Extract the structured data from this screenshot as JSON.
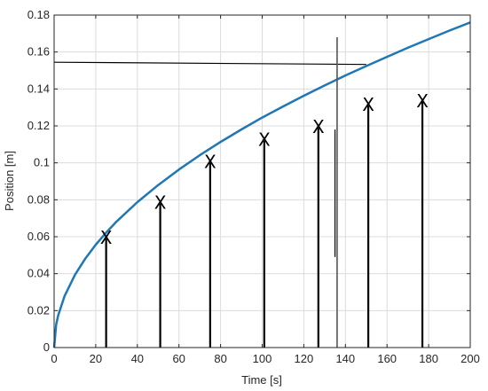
{
  "chart_data": {
    "type": "line",
    "title": "",
    "xlabel": "Time [s]",
    "ylabel": "Position [m]",
    "xlim": [
      0,
      200
    ],
    "ylim": [
      0,
      0.18
    ],
    "grid": true,
    "x_ticks": [
      0,
      20,
      40,
      60,
      80,
      100,
      120,
      140,
      160,
      180,
      200
    ],
    "x_tick_labels": [
      "0",
      "20",
      "40",
      "60",
      "80",
      "100",
      "120",
      "140",
      "160",
      "180",
      "200"
    ],
    "y_ticks": [
      0,
      0.02,
      0.04,
      0.06,
      0.08,
      0.1,
      0.12,
      0.14,
      0.16,
      0.18
    ],
    "y_tick_labels": [
      "0",
      "0.02",
      "0.04",
      "0.06",
      "0.08",
      "0.1",
      "0.12",
      "0.14",
      "0.16",
      "0.18"
    ],
    "series": [
      {
        "color": "#1f77b4",
        "x": [
          0,
          1,
          2,
          5,
          10,
          15,
          20,
          25,
          30,
          40,
          50,
          60,
          70,
          80,
          90,
          100,
          110,
          120,
          130,
          137,
          140,
          150,
          160,
          170,
          180,
          190,
          200
        ],
        "y": [
          0,
          0.0124,
          0.0176,
          0.0278,
          0.0394,
          0.0482,
          0.0557,
          0.0622,
          0.0682,
          0.0787,
          0.088,
          0.0964,
          0.1041,
          0.1113,
          0.1181,
          0.1245,
          0.1305,
          0.1363,
          0.1419,
          0.1457,
          0.1473,
          0.1524,
          0.1574,
          0.1623,
          0.167,
          0.1716,
          0.176
        ]
      }
    ],
    "stems": [
      {
        "x": 25,
        "y": 0.059,
        "marker": "X"
      },
      {
        "x": 51,
        "y": 0.078,
        "marker": "X"
      },
      {
        "x": 75,
        "y": 0.1,
        "marker": "X"
      },
      {
        "x": 101,
        "y": 0.112,
        "marker": "X"
      },
      {
        "x": 127,
        "y": 0.119,
        "marker": "X"
      },
      {
        "x": 151,
        "y": 0.131,
        "marker": "X"
      },
      {
        "x": 177,
        "y": 0.133,
        "marker": "X"
      }
    ],
    "reference_lines": {
      "horizontal": {
        "y": 0.154,
        "x_from": 0,
        "x_to": 150
      },
      "vertical": {
        "x": 136,
        "y_from": 0,
        "y_to": 0.168
      },
      "vertical_inner": {
        "x": 135,
        "y_from": 0.049,
        "y_to": 0.118
      }
    },
    "colors": {
      "curve": "#1f77b4",
      "grid": "#dcdcdc",
      "axis": "#262626",
      "stem": "#000000"
    }
  }
}
